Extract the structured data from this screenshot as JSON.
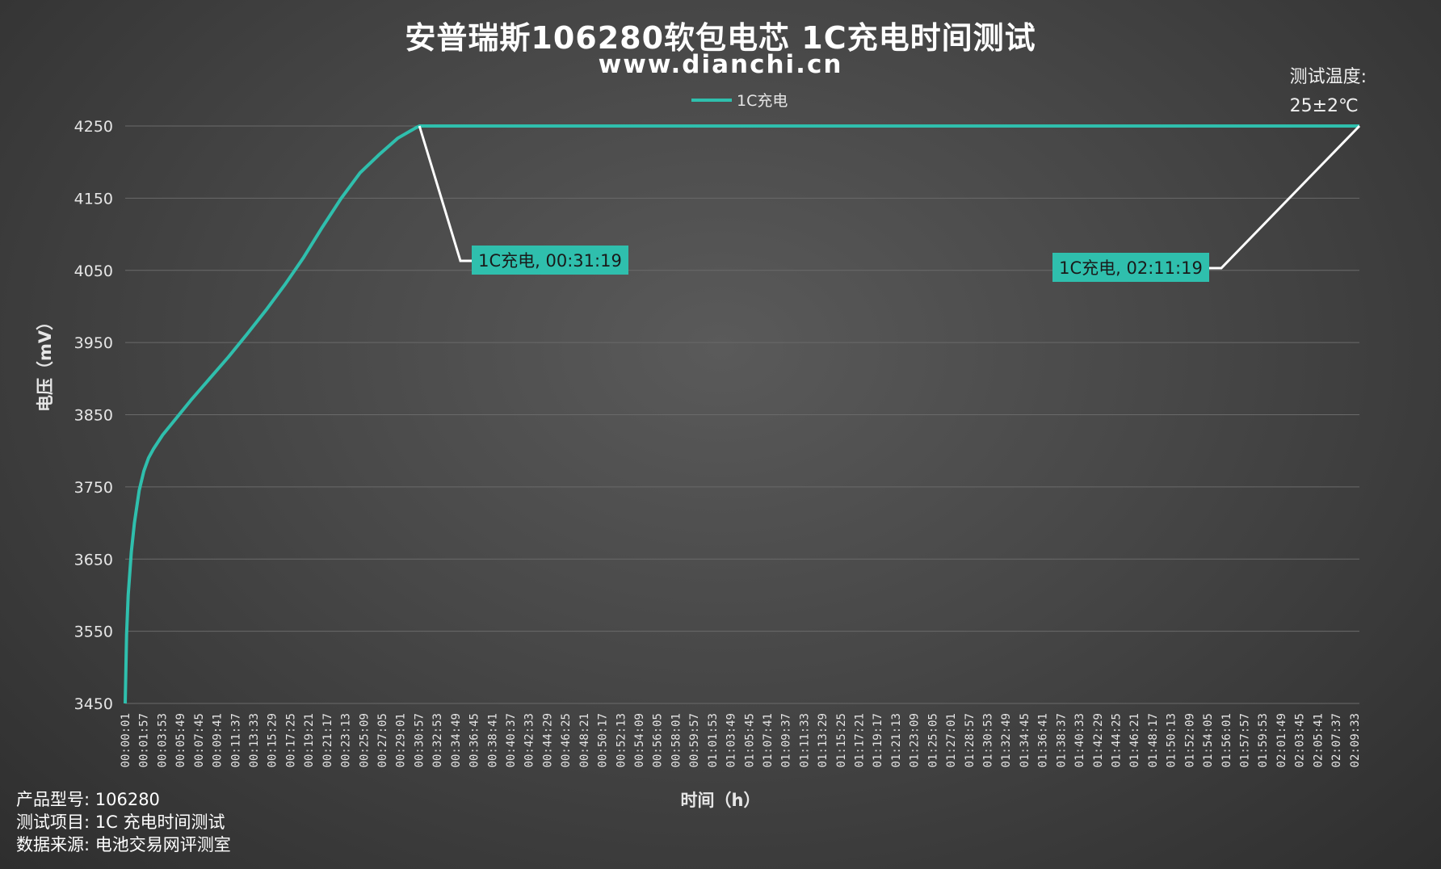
{
  "header": {
    "title": "安普瑞斯106280软包电芯 1C充电时间测试",
    "subtitle": "www.dianchi.cn"
  },
  "temperature_note": {
    "line1": "测试温度:",
    "line2": "25±2℃"
  },
  "footer": {
    "model": "产品型号: 106280",
    "test_item": "测试项目: 1C 充电时间测试",
    "source": "数据来源: 电池交易网评测室"
  },
  "colors": {
    "series": "#2fbfad",
    "leader": "#ffffff",
    "grid": "#6a6a6a",
    "callout_bg": "#2fbfad"
  },
  "chart_data": {
    "type": "line",
    "title": "安普瑞斯106280软包电芯 1C充电时间测试",
    "xlabel": "时间（h）",
    "ylabel": "电压（mV）",
    "ylim": [
      3450,
      4250
    ],
    "yticks": [
      3450,
      3550,
      3650,
      3750,
      3850,
      3950,
      4050,
      4150,
      4250
    ],
    "grid": true,
    "legend_position": "top",
    "xticks": [
      "00:00:01",
      "00:01:57",
      "00:03:53",
      "00:05:49",
      "00:07:45",
      "00:09:41",
      "00:11:37",
      "00:13:33",
      "00:15:29",
      "00:17:25",
      "00:19:21",
      "00:21:17",
      "00:23:13",
      "00:25:09",
      "00:27:05",
      "00:29:01",
      "00:30:57",
      "00:32:53",
      "00:34:49",
      "00:36:45",
      "00:38:41",
      "00:40:37",
      "00:42:33",
      "00:44:29",
      "00:46:25",
      "00:48:21",
      "00:50:17",
      "00:52:13",
      "00:54:09",
      "00:56:05",
      "00:58:01",
      "00:59:57",
      "01:01:53",
      "01:03:49",
      "01:05:45",
      "01:07:41",
      "01:09:37",
      "01:11:33",
      "01:13:29",
      "01:15:25",
      "01:17:21",
      "01:19:17",
      "01:21:13",
      "01:23:09",
      "01:25:05",
      "01:27:01",
      "01:28:57",
      "01:30:53",
      "01:32:49",
      "01:34:45",
      "01:36:41",
      "01:38:37",
      "01:40:33",
      "01:42:29",
      "01:44:25",
      "01:46:21",
      "01:48:17",
      "01:50:13",
      "01:52:09",
      "01:54:05",
      "01:56:01",
      "01:57:57",
      "01:59:53",
      "02:01:49",
      "02:03:45",
      "02:05:41",
      "02:07:37",
      "02:09:33"
    ],
    "x_range_seconds": [
      1,
      7879
    ],
    "series": [
      {
        "name": "1C充电",
        "x_seconds": [
          1,
          10,
          20,
          40,
          60,
          90,
          120,
          150,
          180,
          240,
          300,
          420,
          540,
          660,
          780,
          900,
          1020,
          1140,
          1260,
          1380,
          1500,
          1620,
          1740,
          1860,
          1879,
          7879
        ],
        "values": [
          3450,
          3545,
          3600,
          3660,
          3700,
          3745,
          3772,
          3790,
          3802,
          3822,
          3838,
          3870,
          3900,
          3930,
          3962,
          3995,
          4030,
          4068,
          4110,
          4150,
          4185,
          4210,
          4233,
          4248,
          4250,
          4250
        ]
      }
    ],
    "annotations": [
      {
        "label": "1C充电, 00:31:19",
        "x_seconds": 1879,
        "y": 4250
      },
      {
        "label": "1C充电, 02:11:19",
        "x_seconds": 7879,
        "y": 4250
      }
    ]
  }
}
